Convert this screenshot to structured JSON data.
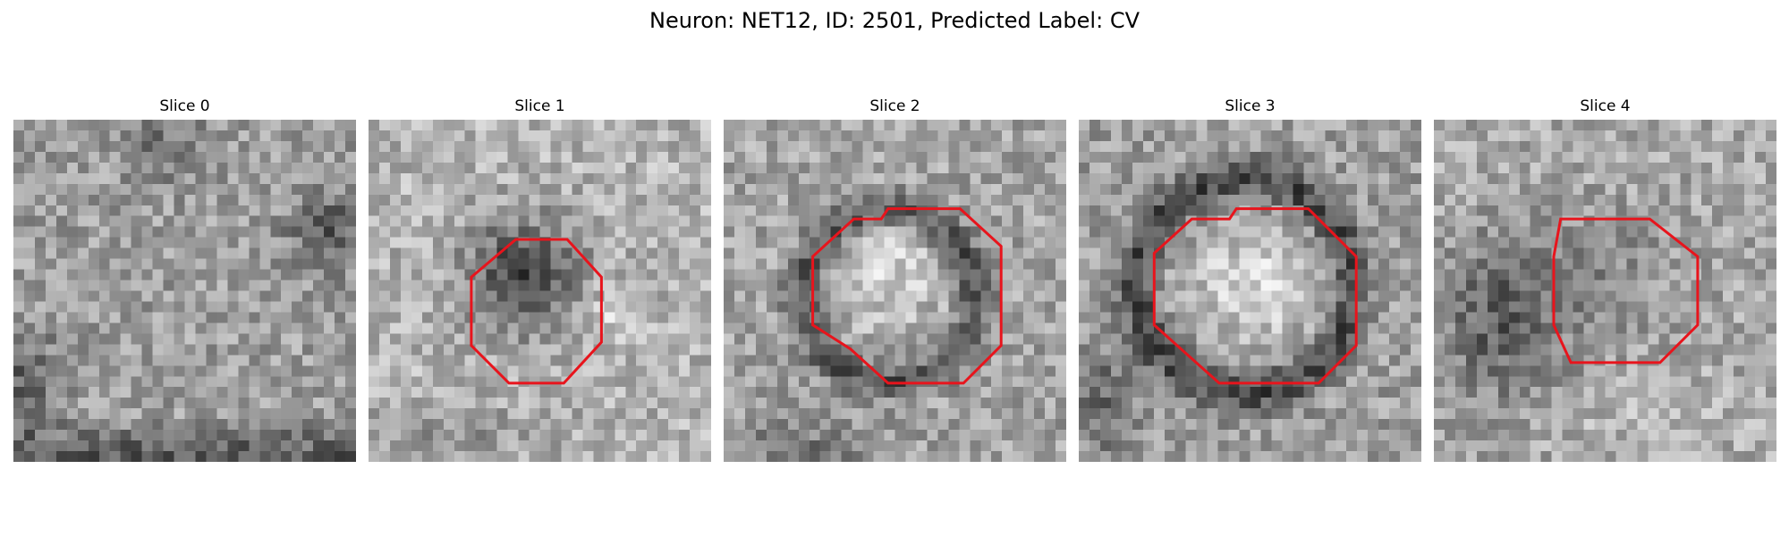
{
  "figure": {
    "title": "Neuron: NET12, ID: 2501, Predicted Label: CV"
  },
  "slices": [
    {
      "title": "Slice 0",
      "contour": false,
      "pattern": "noise-dark-edges"
    },
    {
      "title": "Slice 1",
      "contour": true,
      "pattern": "dark-blob"
    },
    {
      "title": "Slice 2",
      "contour": true,
      "pattern": "ring-bright-center"
    },
    {
      "title": "Slice 3",
      "contour": true,
      "pattern": "ring-bright-center-large"
    },
    {
      "title": "Slice 4",
      "contour": true,
      "pattern": "dark-left-blob"
    }
  ],
  "colors": {
    "contour": "#e8141c",
    "colormap": "gray"
  }
}
